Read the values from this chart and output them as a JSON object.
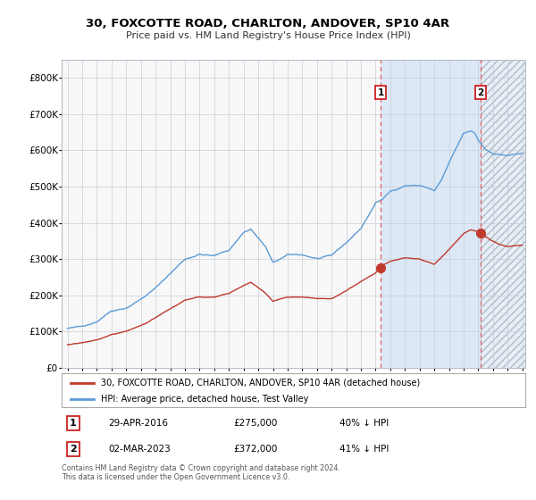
{
  "title": "30, FOXCOTTE ROAD, CHARLTON, ANDOVER, SP10 4AR",
  "subtitle": "Price paid vs. HM Land Registry's House Price Index (HPI)",
  "legend_line1": "30, FOXCOTTE ROAD, CHARLTON, ANDOVER, SP10 4AR (detached house)",
  "legend_line2": "HPI: Average price, detached house, Test Valley",
  "transaction1_date": "29-APR-2016",
  "transaction1_price": 275000,
  "transaction1_label": "40% ↓ HPI",
  "transaction2_date": "02-MAR-2023",
  "transaction2_price": 372000,
  "transaction2_label": "41% ↓ HPI",
  "footnote": "Contains HM Land Registry data © Crown copyright and database right 2024.\nThis data is licensed under the Open Government Licence v3.0.",
  "hpi_color": "#5b9bd5",
  "price_color": "#c0392b",
  "background_color": "#ffffff",
  "plot_bg_color": "#f8f8f8",
  "grid_color": "#c8cdd8",
  "marker_color": "#c0392b",
  "dashed_line_color": "#e06060",
  "shade_between_color": "#dce8f5",
  "hatch_bg_color": "#e8eef5",
  "ylim": [
    0,
    850000
  ],
  "yticks": [
    0,
    100000,
    200000,
    300000,
    400000,
    500000,
    600000,
    700000,
    800000
  ],
  "ytick_labels": [
    "£0",
    "£100K",
    "£200K",
    "£300K",
    "£400K",
    "£500K",
    "£600K",
    "£700K",
    "£800K"
  ],
  "hpi_anchors_x": [
    1995.0,
    1996.0,
    1997.0,
    1997.5,
    1998.0,
    1999.0,
    2000.0,
    2001.0,
    2002.0,
    2003.0,
    2004.0,
    2005.0,
    2006.0,
    2007.0,
    2007.5,
    2008.5,
    2009.0,
    2010.0,
    2011.0,
    2012.0,
    2013.0,
    2014.0,
    2015.0,
    2015.5,
    2016.0,
    2016.5,
    2017.0,
    2017.5,
    2018.0,
    2019.0,
    2019.5,
    2020.0,
    2020.5,
    2021.0,
    2021.5,
    2022.0,
    2022.5,
    2022.75,
    2023.0,
    2023.5,
    2024.0,
    2025.0,
    2026.0
  ],
  "hpi_anchors_y": [
    108000,
    112000,
    128000,
    145000,
    160000,
    170000,
    195000,
    225000,
    265000,
    305000,
    320000,
    315000,
    330000,
    380000,
    390000,
    340000,
    295000,
    315000,
    315000,
    305000,
    310000,
    345000,
    385000,
    420000,
    455000,
    465000,
    490000,
    495000,
    505000,
    505000,
    500000,
    490000,
    520000,
    565000,
    605000,
    645000,
    650000,
    645000,
    625000,
    600000,
    590000,
    585000,
    590000
  ],
  "red_anchors_x": [
    1995.0,
    1996.0,
    1997.0,
    1998.0,
    1999.0,
    2000.0,
    2001.0,
    2002.0,
    2003.0,
    2004.0,
    2005.0,
    2006.0,
    2007.0,
    2007.5,
    2008.5,
    2009.0,
    2010.0,
    2011.0,
    2012.0,
    2013.0,
    2014.0,
    2015.0,
    2016.0,
    2016.33,
    2017.0,
    2018.0,
    2019.0,
    2020.0,
    2021.0,
    2022.0,
    2022.5,
    2023.17,
    2023.5,
    2024.0,
    2024.5,
    2025.0,
    2026.0
  ],
  "red_anchors_y": [
    63000,
    67000,
    76000,
    90000,
    99000,
    115000,
    137000,
    160000,
    183000,
    190000,
    190000,
    200000,
    223000,
    232000,
    200000,
    178000,
    190000,
    191000,
    186000,
    185000,
    207000,
    232000,
    255000,
    275000,
    289000,
    298000,
    298000,
    285000,
    325000,
    370000,
    380000,
    372000,
    360000,
    348000,
    340000,
    335000,
    340000
  ]
}
